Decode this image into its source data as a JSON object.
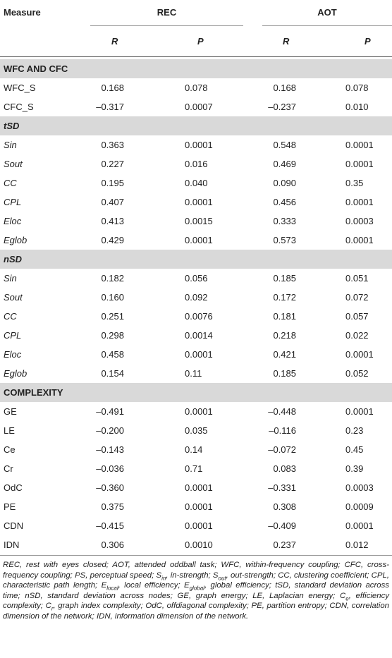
{
  "header": {
    "measure": "Measure",
    "groups": [
      "REC",
      "AOT"
    ],
    "subheads": [
      "R",
      "P",
      "R",
      "P"
    ]
  },
  "sections": [
    {
      "title": "WFC AND CFC",
      "italic": false,
      "rows": [
        [
          "WFC_S",
          "0.168",
          "0.078",
          "0.168",
          "0.078"
        ],
        [
          "CFC_S",
          "–0.317",
          "0.0007",
          "–0.237",
          "0.010"
        ]
      ]
    },
    {
      "title": "tSD",
      "italic": true,
      "rows": [
        [
          "Sin",
          "0.363",
          "0.0001",
          "0.548",
          "0.0001"
        ],
        [
          "Sout",
          "0.227",
          "0.016",
          "0.469",
          "0.0001"
        ],
        [
          "CC",
          "0.195",
          "0.040",
          "0.090",
          "0.35"
        ],
        [
          "CPL",
          "0.407",
          "0.0001",
          "0.456",
          "0.0001"
        ],
        [
          "Eloc",
          "0.413",
          "0.0015",
          "0.333",
          "0.0003"
        ],
        [
          "Eglob",
          "0.429",
          "0.0001",
          "0.573",
          "0.0001"
        ]
      ]
    },
    {
      "title": "nSD",
      "italic": true,
      "rows": [
        [
          "Sin",
          "0.182",
          "0.056",
          "0.185",
          "0.051"
        ],
        [
          "Sout",
          "0.160",
          "0.092",
          "0.172",
          "0.072"
        ],
        [
          "CC",
          "0.251",
          "0.0076",
          "0.181",
          "0.057"
        ],
        [
          "CPL",
          "0.298",
          "0.0014",
          "0.218",
          "0.022"
        ],
        [
          "Eloc",
          "0.458",
          "0.0001",
          "0.421",
          "0.0001"
        ],
        [
          "Eglob",
          "0.154",
          "0.11",
          "0.185",
          "0.052"
        ]
      ]
    },
    {
      "title": "COMPLEXITY",
      "italic": false,
      "rows": [
        [
          "GE",
          "–0.491",
          "0.0001",
          "–0.448",
          "0.0001"
        ],
        [
          "LE",
          "–0.200",
          "0.035",
          "–0.116",
          "0.23"
        ],
        [
          "Ce",
          "–0.143",
          "0.14",
          "–0.072",
          "0.45"
        ],
        [
          "Cr",
          "–0.036",
          "0.71",
          "0.083",
          "0.39"
        ],
        [
          "OdC",
          "–0.360",
          "0.0001",
          "–0.331",
          "0.0003"
        ],
        [
          "PE",
          "0.375",
          "0.0001",
          "0.308",
          "0.0009"
        ],
        [
          "CDN",
          "–0.415",
          "0.0001",
          "–0.409",
          "0.0001"
        ],
        [
          "IDN",
          "0.306",
          "0.0010",
          "0.237",
          "0.012"
        ]
      ]
    }
  ],
  "footnote": [
    "REC, rest with eyes closed; AOT, attended oddball task; WFC, within-frequency coupling; CFC, cross-frequency coupling; PS, perceptual speed; S",
    "in",
    ", in-strength; S",
    "out",
    ", out-strength; CC, clustering coefficient; CPL, characteristic path length; E",
    "local",
    ", local efficiency; E",
    "global",
    ", global efficiency; tSD, standard deviation across time; nSD, standard deviation across nodes; GE, graph energy; LE, Laplacian energy; C",
    "e",
    ", efficiency complexity; C",
    "r",
    ", graph index complexity; OdC, offdiagonal complexity; PE, partition entropy; CDN, correlation dimension of the network; IDN, information dimension of the network."
  ]
}
